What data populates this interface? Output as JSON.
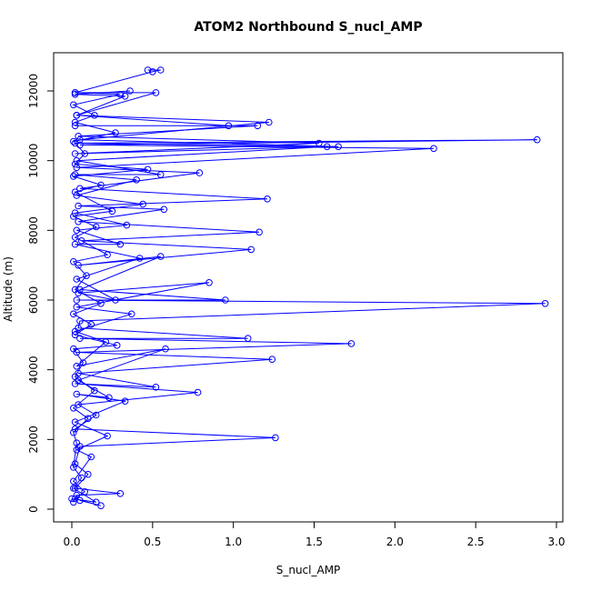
{
  "chart_data": {
    "type": "line",
    "title": "ATOM2 Northbound S_nucl_AMP",
    "xlabel": "S_nucl_AMP",
    "ylabel": "Altitude (m)",
    "xlim": [
      0,
      3.0
    ],
    "ylim": [
      0,
      12600
    ],
    "xticks": [
      0.0,
      0.5,
      1.0,
      1.5,
      2.0,
      2.5,
      3.0
    ],
    "xtick_labels": [
      "0.0",
      "0.5",
      "1.0",
      "1.5",
      "2.0",
      "2.5",
      "3.0"
    ],
    "yticks": [
      0,
      2000,
      4000,
      6000,
      8000,
      10000,
      12000
    ],
    "ytick_labels": [
      "0",
      "2000",
      "4000",
      "6000",
      "8000",
      "10000",
      "12000"
    ],
    "grid": false,
    "series": [
      {
        "color": "#0000ff",
        "marker": "open-circle",
        "points": [
          [
            0.01,
            200
          ],
          [
            0.03,
            400
          ],
          [
            0.3,
            450
          ],
          [
            0.02,
            600
          ],
          [
            0.1,
            1000
          ],
          [
            0.02,
            1300
          ],
          [
            0.05,
            1800
          ],
          [
            1.26,
            2050
          ],
          [
            0.02,
            2300
          ],
          [
            0.15,
            2700
          ],
          [
            0.04,
            3000
          ],
          [
            0.78,
            3350
          ],
          [
            0.02,
            3600
          ],
          [
            0.52,
            3500
          ],
          [
            0.04,
            3900
          ],
          [
            1.24,
            4300
          ],
          [
            0.03,
            4500
          ],
          [
            1.73,
            4750
          ],
          [
            0.05,
            4900
          ],
          [
            1.09,
            4900
          ],
          [
            0.04,
            5200
          ],
          [
            0.05,
            5400
          ],
          [
            2.93,
            5900
          ],
          [
            0.03,
            6000
          ],
          [
            0.95,
            6000
          ],
          [
            0.05,
            6300
          ],
          [
            0.55,
            7250
          ],
          [
            0.04,
            7000
          ],
          [
            1.11,
            7450
          ],
          [
            0.06,
            7700
          ],
          [
            1.16,
            7950
          ],
          [
            0.04,
            8250
          ],
          [
            0.57,
            8600
          ],
          [
            0.04,
            8700
          ],
          [
            1.21,
            8900
          ],
          [
            0.05,
            9200
          ],
          [
            0.79,
            9650
          ],
          [
            0.03,
            9800
          ],
          [
            2.24,
            10350
          ],
          [
            0.05,
            10450
          ],
          [
            2.88,
            10600
          ],
          [
            0.02,
            10500
          ],
          [
            1.65,
            10400
          ],
          [
            0.05,
            10600
          ],
          [
            1.22,
            11100
          ],
          [
            0.03,
            11300
          ],
          [
            0.52,
            11950
          ],
          [
            0.02,
            11950
          ],
          [
            0.5,
            12550
          ],
          [
            0.55,
            12600
          ],
          [
            0.47,
            12600
          ]
        ]
      },
      {
        "color": "#0000ff",
        "marker": "open-circle",
        "points": [
          [
            0.05,
            250
          ],
          [
            0.18,
            100
          ],
          [
            0.02,
            300
          ],
          [
            0.08,
            500
          ],
          [
            0.01,
            800
          ],
          [
            0.12,
            1500
          ],
          [
            0.03,
            1700
          ],
          [
            0.22,
            2100
          ],
          [
            0.02,
            2500
          ],
          [
            0.33,
            3100
          ],
          [
            0.03,
            3300
          ],
          [
            0.23,
            3200
          ],
          [
            0.04,
            3700
          ],
          [
            0.58,
            4600
          ],
          [
            0.03,
            4100
          ],
          [
            0.21,
            4800
          ],
          [
            0.02,
            5100
          ],
          [
            0.37,
            5600
          ],
          [
            0.03,
            5800
          ],
          [
            0.85,
            6500
          ],
          [
            0.04,
            6200
          ],
          [
            0.27,
            6000
          ],
          [
            0.03,
            6600
          ],
          [
            0.42,
            7200
          ],
          [
            0.02,
            7600
          ],
          [
            0.3,
            7600
          ],
          [
            0.03,
            8000
          ],
          [
            0.34,
            8150
          ],
          [
            0.02,
            8500
          ],
          [
            0.44,
            8750
          ],
          [
            0.03,
            9000
          ],
          [
            0.4,
            9450
          ],
          [
            0.02,
            9600
          ],
          [
            0.55,
            9600
          ],
          [
            0.03,
            10000
          ],
          [
            1.58,
            10400
          ],
          [
            0.02,
            10200
          ],
          [
            1.53,
            10500
          ],
          [
            0.04,
            10700
          ],
          [
            1.15,
            11000
          ],
          [
            0.02,
            11000
          ],
          [
            0.97,
            11000
          ],
          [
            0.03,
            11300
          ],
          [
            0.33,
            11850
          ],
          [
            0.02,
            11900
          ],
          [
            0.36,
            12000
          ]
        ]
      },
      {
        "color": "#0000ff",
        "marker": "open-circle",
        "points": [
          [
            0.0,
            300
          ],
          [
            0.15,
            200
          ],
          [
            0.01,
            600
          ],
          [
            0.06,
            900
          ],
          [
            0.01,
            1200
          ],
          [
            0.03,
            1900
          ],
          [
            0.01,
            2200
          ],
          [
            0.1,
            2600
          ],
          [
            0.01,
            2900
          ],
          [
            0.14,
            3400
          ],
          [
            0.02,
            3800
          ],
          [
            0.07,
            4200
          ],
          [
            0.01,
            4600
          ],
          [
            0.28,
            4700
          ],
          [
            0.02,
            5000
          ],
          [
            0.12,
            5300
          ],
          [
            0.01,
            5600
          ],
          [
            0.18,
            5900
          ],
          [
            0.02,
            6300
          ],
          [
            0.09,
            6700
          ],
          [
            0.01,
            7100
          ],
          [
            0.22,
            7300
          ],
          [
            0.02,
            7800
          ],
          [
            0.15,
            8100
          ],
          [
            0.01,
            8400
          ],
          [
            0.25,
            8550
          ],
          [
            0.02,
            9100
          ],
          [
            0.18,
            9300
          ],
          [
            0.01,
            9550
          ],
          [
            0.47,
            9750
          ],
          [
            0.02,
            9900
          ],
          [
            0.08,
            10200
          ],
          [
            0.01,
            10550
          ],
          [
            0.27,
            10800
          ],
          [
            0.02,
            11100
          ],
          [
            0.14,
            11300
          ],
          [
            0.01,
            11600
          ],
          [
            0.3,
            11900
          ],
          [
            0.02,
            11950
          ]
        ]
      }
    ]
  }
}
